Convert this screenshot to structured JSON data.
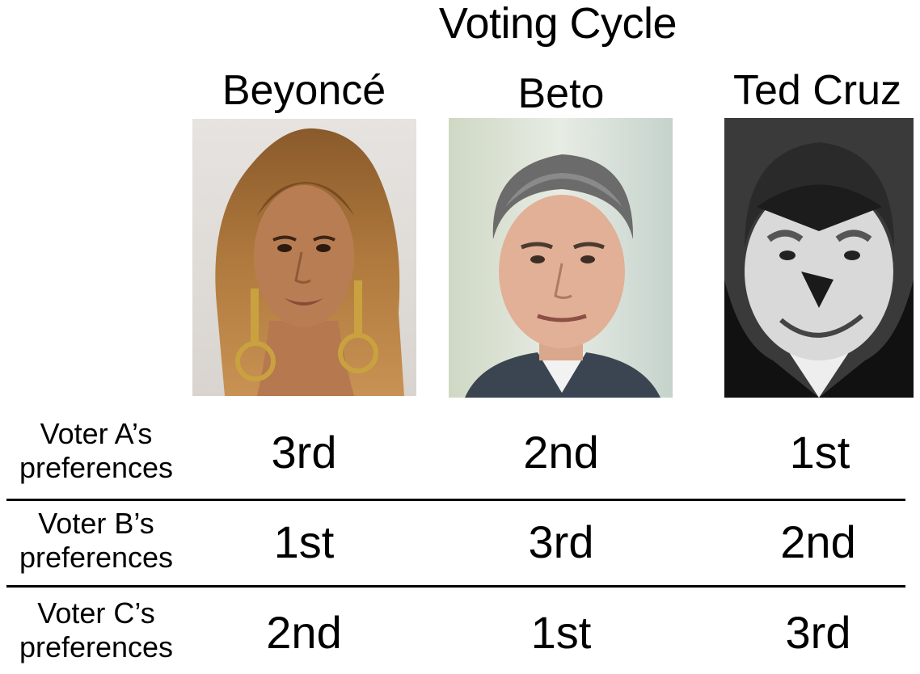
{
  "title": "Voting Cycle",
  "candidates": [
    {
      "name": "Beyoncé",
      "portrait_icon": "beyonce-portrait"
    },
    {
      "name": "Beto",
      "portrait_icon": "beto-portrait"
    },
    {
      "name": "Ted Cruz",
      "portrait_icon": "ted-cruz-portrait"
    }
  ],
  "voters": [
    {
      "label_line1": "Voter A’s",
      "label_line2": "preferences",
      "ranks": [
        "3rd",
        "2nd",
        "1st"
      ]
    },
    {
      "label_line1": "Voter B’s",
      "label_line2": "preferences",
      "ranks": [
        "1st",
        "3rd",
        "2nd"
      ]
    },
    {
      "label_line1": "Voter C’s",
      "label_line2": "preferences",
      "ranks": [
        "2nd",
        "1st",
        "3rd"
      ]
    }
  ]
}
